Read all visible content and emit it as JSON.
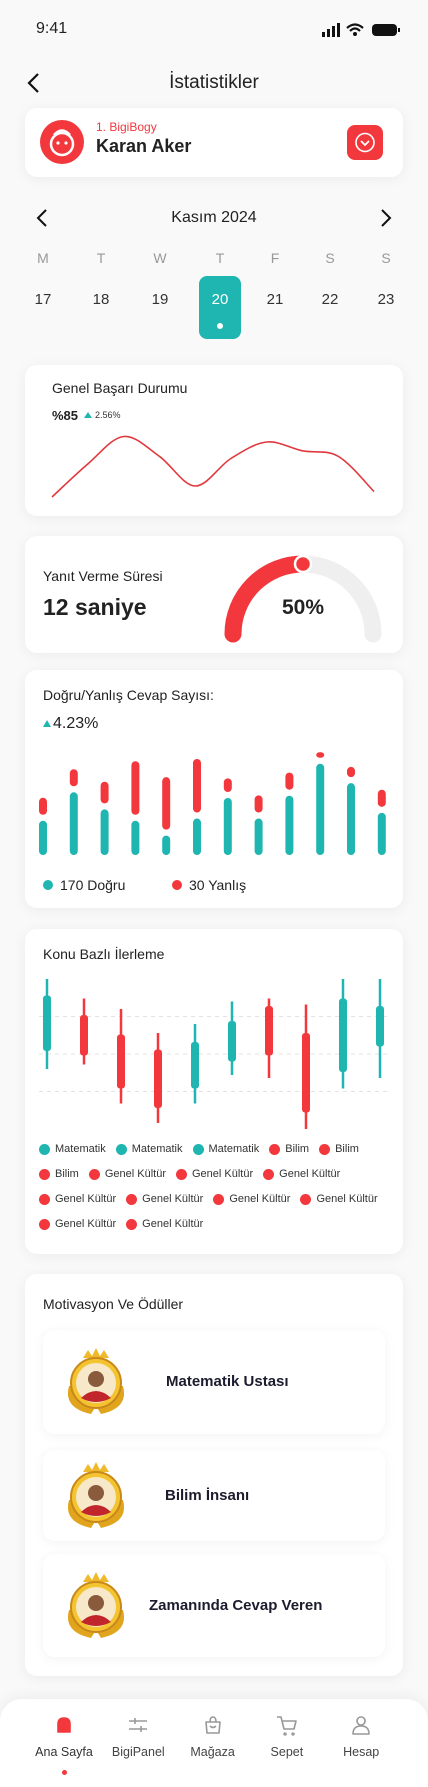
{
  "status_bar": {
    "time": "9:41"
  },
  "header": {
    "title": "İstatistikler"
  },
  "profile": {
    "rank": "1. BigiBogy",
    "name": "Karan Aker"
  },
  "calendar": {
    "month": "Kasım 2024",
    "weekdays": [
      "M",
      "T",
      "W",
      "T",
      "F",
      "S",
      "S"
    ],
    "days": [
      17,
      18,
      19,
      20,
      21,
      22,
      23
    ],
    "selected_day": 20
  },
  "success_card": {
    "title": "Genel Başarı Durumu",
    "score": "%85",
    "change": "2.56%",
    "chart": {
      "type": "line",
      "color": "#e0393e",
      "values": [
        0,
        30,
        55,
        37,
        10,
        35,
        50,
        42,
        37,
        5
      ]
    }
  },
  "response_card": {
    "title": "Yanıt Verme Süresi",
    "duration": "12 saniye",
    "chart": {
      "type": "gauge",
      "values": [
        50
      ],
      "value_labels": [
        "50%"
      ],
      "color": "#f2383c",
      "track_color": "#efefef"
    }
  },
  "answers_card": {
    "title": "Doğru/Yanlış Cevap Sayısı:",
    "change": "4.23%",
    "chart": {
      "type": "bar",
      "stacked": true,
      "series": [
        {
          "color": "#1fb5b0",
          "values": [
            30,
            55,
            40,
            30,
            17,
            32,
            50,
            32,
            52,
            80,
            63,
            37
          ]
        },
        {
          "color": "#f2383c",
          "values": [
            15,
            15,
            19,
            47,
            46,
            47,
            12,
            15,
            15,
            5,
            9,
            15
          ]
        }
      ]
    },
    "legend": [
      "170 Doğru",
      "30 Yanlış"
    ]
  },
  "topics_card": {
    "title": "Konu Bazlı İlerleme",
    "chart": {
      "type": "candlestick",
      "up_color": "#1fb5b0",
      "down_color": "#f2383c",
      "candles": [
        {
          "open": 52,
          "high": 100,
          "low": 40,
          "close": 89
        },
        {
          "open": 76,
          "high": 87,
          "low": 43,
          "close": 49
        },
        {
          "open": 63,
          "high": 80,
          "low": 17,
          "close": 27
        },
        {
          "open": 53,
          "high": 64,
          "low": 4,
          "close": 14
        },
        {
          "open": 27,
          "high": 70,
          "low": 17,
          "close": 58
        },
        {
          "open": 45,
          "high": 85,
          "low": 36,
          "close": 72
        },
        {
          "open": 82,
          "high": 87,
          "low": 34,
          "close": 49
        },
        {
          "open": 64,
          "high": 83,
          "low": 0,
          "close": 11
        },
        {
          "open": 38,
          "high": 100,
          "low": 27,
          "close": 87
        },
        {
          "open": 55,
          "high": 100,
          "low": 34,
          "close": 82
        }
      ]
    },
    "legend": [
      {
        "label": "Matematik",
        "color": "#1fb5b0"
      },
      {
        "label": "Matematik",
        "color": "#1fb5b0"
      },
      {
        "label": "Matematik",
        "color": "#1fb5b0"
      },
      {
        "label": "Bilim",
        "color": "#f2383c"
      },
      {
        "label": "Bilim",
        "color": "#f2383c"
      },
      {
        "label": "Bilim",
        "color": "#f2383c"
      },
      {
        "label": "Genel Kültür",
        "color": "#f2383c"
      },
      {
        "label": "Genel Kültür",
        "color": "#f2383c"
      },
      {
        "label": "Genel Kültür",
        "color": "#f2383c"
      },
      {
        "label": "Genel Kültür",
        "color": "#f2383c"
      },
      {
        "label": "Genel Kültür",
        "color": "#f2383c"
      },
      {
        "label": "Genel Kültür",
        "color": "#f2383c"
      },
      {
        "label": "Genel Kültür",
        "color": "#f2383c"
      },
      {
        "label": "Genel Kültür",
        "color": "#f2383c"
      },
      {
        "label": "Genel Kültür",
        "color": "#f2383c"
      }
    ]
  },
  "awards_card": {
    "title": "Motivasyon Ve Ödüller",
    "items": [
      "Matematik Ustası",
      "Bilim İnsanı",
      "Zamanında Cevap Veren"
    ]
  },
  "nav": {
    "items": [
      "Ana Sayfa",
      "BigiPanel",
      "Mağaza",
      "Sepet",
      "Hesap"
    ],
    "active": "Ana Sayfa"
  }
}
